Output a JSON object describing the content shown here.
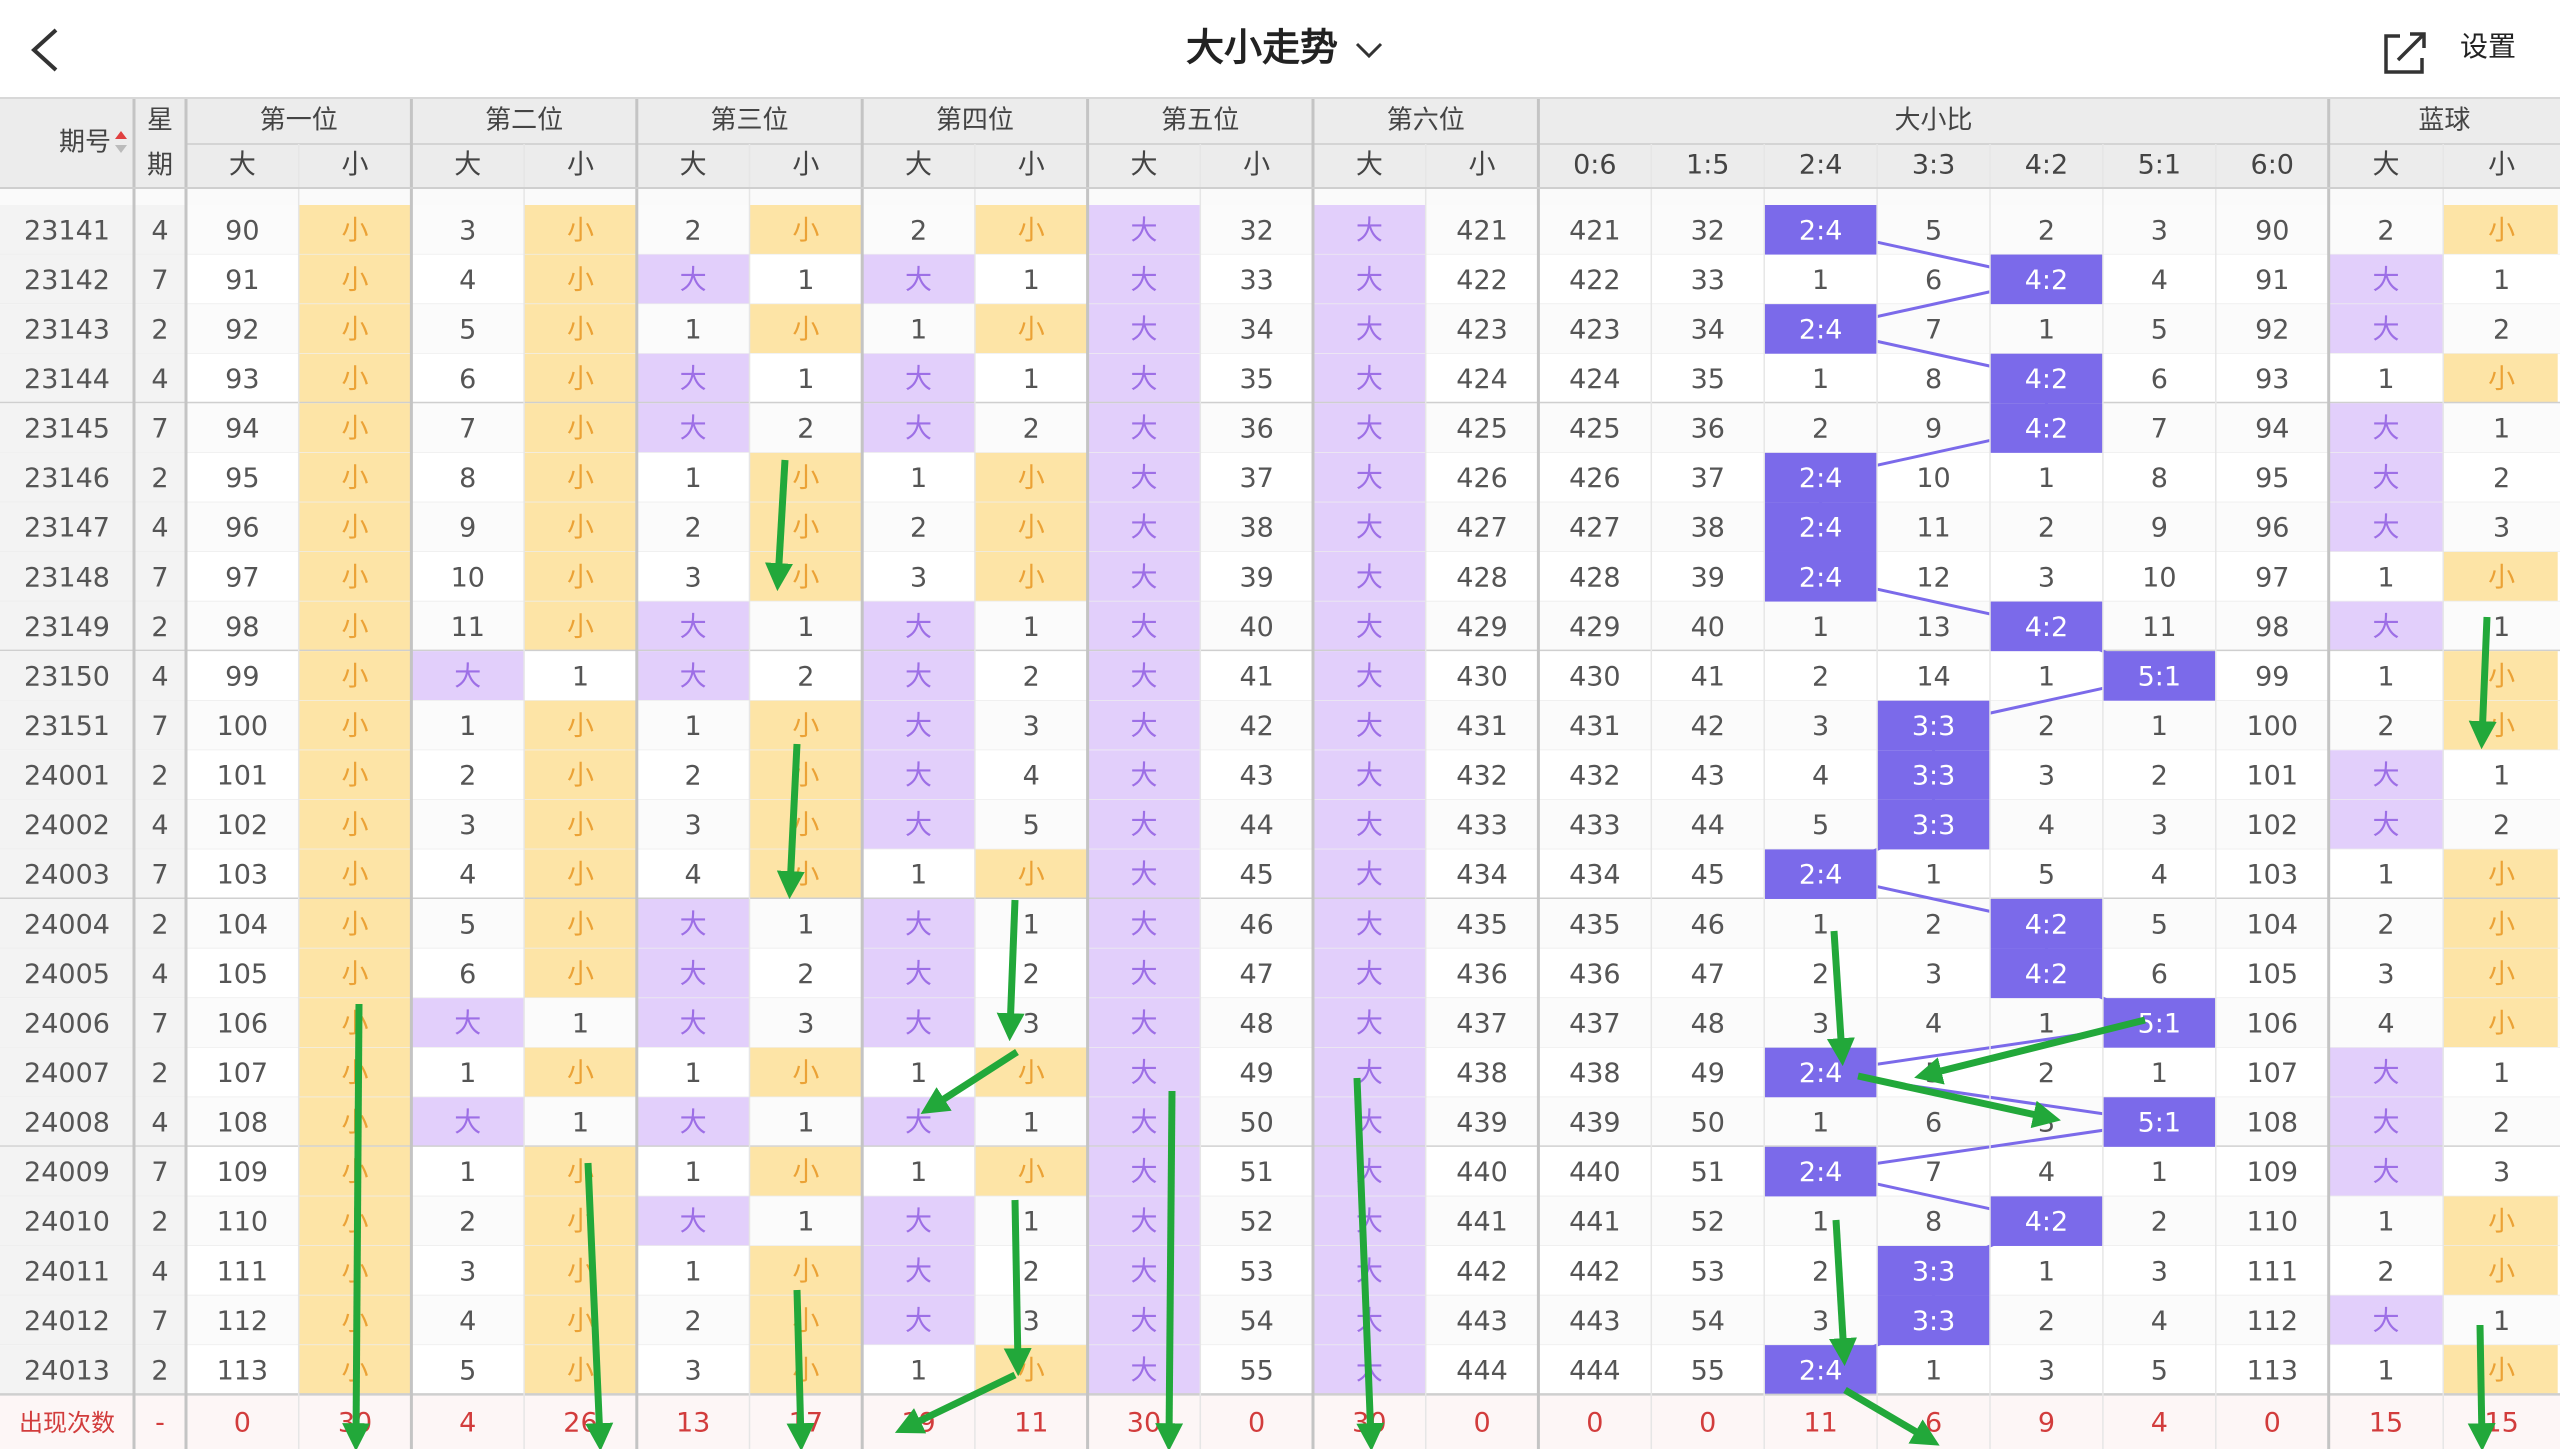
{
  "header": {
    "title": "大小走势",
    "settings": "设置"
  },
  "table": {
    "group_headers": [
      "期号",
      "第一位",
      "第二位",
      "第三位",
      "第四位",
      "第五位",
      "第六位",
      "大小比",
      "蓝球"
    ],
    "weekday_header": [
      "星",
      "期"
    ],
    "sub_headers": [
      "大",
      "小",
      "大",
      "小",
      "大",
      "小",
      "大",
      "小",
      "大",
      "小",
      "大",
      "小",
      "0:6",
      "1:5",
      "2:4",
      "3:3",
      "4:2",
      "5:1",
      "6:0",
      "大",
      "小"
    ],
    "rows": [
      [
        "23141",
        "4",
        "90",
        "小",
        "3",
        "小",
        "2",
        "小",
        "2",
        "小",
        "大",
        "32",
        "大",
        "421",
        "421",
        "32",
        "2:4",
        "5",
        "2",
        "3",
        "90",
        "2",
        "小"
      ],
      [
        "23142",
        "7",
        "91",
        "小",
        "4",
        "小",
        "大",
        "1",
        "大",
        "1",
        "大",
        "33",
        "大",
        "422",
        "422",
        "33",
        "1",
        "6",
        "4:2",
        "4",
        "91",
        "大",
        "1"
      ],
      [
        "23143",
        "2",
        "92",
        "小",
        "5",
        "小",
        "1",
        "小",
        "1",
        "小",
        "大",
        "34",
        "大",
        "423",
        "423",
        "34",
        "2:4",
        "7",
        "1",
        "5",
        "92",
        "大",
        "2"
      ],
      [
        "23144",
        "4",
        "93",
        "小",
        "6",
        "小",
        "大",
        "1",
        "大",
        "1",
        "大",
        "35",
        "大",
        "424",
        "424",
        "35",
        "1",
        "8",
        "4:2",
        "6",
        "93",
        "1",
        "小"
      ],
      [
        "23145",
        "7",
        "94",
        "小",
        "7",
        "小",
        "大",
        "2",
        "大",
        "2",
        "大",
        "36",
        "大",
        "425",
        "425",
        "36",
        "2",
        "9",
        "4:2",
        "7",
        "94",
        "大",
        "1"
      ],
      [
        "23146",
        "2",
        "95",
        "小",
        "8",
        "小",
        "1",
        "小",
        "1",
        "小",
        "大",
        "37",
        "大",
        "426",
        "426",
        "37",
        "2:4",
        "10",
        "1",
        "8",
        "95",
        "大",
        "2"
      ],
      [
        "23147",
        "4",
        "96",
        "小",
        "9",
        "小",
        "2",
        "小",
        "2",
        "小",
        "大",
        "38",
        "大",
        "427",
        "427",
        "38",
        "2:4",
        "11",
        "2",
        "9",
        "96",
        "大",
        "3"
      ],
      [
        "23148",
        "7",
        "97",
        "小",
        "10",
        "小",
        "3",
        "小",
        "3",
        "小",
        "大",
        "39",
        "大",
        "428",
        "428",
        "39",
        "2:4",
        "12",
        "3",
        "10",
        "97",
        "1",
        "小"
      ],
      [
        "23149",
        "2",
        "98",
        "小",
        "11",
        "小",
        "大",
        "1",
        "大",
        "1",
        "大",
        "40",
        "大",
        "429",
        "429",
        "40",
        "1",
        "13",
        "4:2",
        "11",
        "98",
        "大",
        "1"
      ],
      [
        "23150",
        "4",
        "99",
        "小",
        "大",
        "1",
        "大",
        "2",
        "大",
        "2",
        "大",
        "41",
        "大",
        "430",
        "430",
        "41",
        "2",
        "14",
        "1",
        "5:1",
        "99",
        "1",
        "小"
      ],
      [
        "23151",
        "7",
        "100",
        "小",
        "1",
        "小",
        "1",
        "小",
        "大",
        "3",
        "大",
        "42",
        "大",
        "431",
        "431",
        "42",
        "3",
        "3:3",
        "2",
        "1",
        "100",
        "2",
        "小"
      ],
      [
        "24001",
        "2",
        "101",
        "小",
        "2",
        "小",
        "2",
        "小",
        "大",
        "4",
        "大",
        "43",
        "大",
        "432",
        "432",
        "43",
        "4",
        "3:3",
        "3",
        "2",
        "101",
        "大",
        "1"
      ],
      [
        "24002",
        "4",
        "102",
        "小",
        "3",
        "小",
        "3",
        "小",
        "大",
        "5",
        "大",
        "44",
        "大",
        "433",
        "433",
        "44",
        "5",
        "3:3",
        "4",
        "3",
        "102",
        "大",
        "2"
      ],
      [
        "24003",
        "7",
        "103",
        "小",
        "4",
        "小",
        "4",
        "小",
        "1",
        "小",
        "大",
        "45",
        "大",
        "434",
        "434",
        "45",
        "2:4",
        "1",
        "5",
        "4",
        "103",
        "1",
        "小"
      ],
      [
        "24004",
        "2",
        "104",
        "小",
        "5",
        "小",
        "大",
        "1",
        "大",
        "1",
        "大",
        "46",
        "大",
        "435",
        "435",
        "46",
        "1",
        "2",
        "4:2",
        "5",
        "104",
        "2",
        "小"
      ],
      [
        "24005",
        "4",
        "105",
        "小",
        "6",
        "小",
        "大",
        "2",
        "大",
        "2",
        "大",
        "47",
        "大",
        "436",
        "436",
        "47",
        "2",
        "3",
        "4:2",
        "6",
        "105",
        "3",
        "小"
      ],
      [
        "24006",
        "7",
        "106",
        "小",
        "大",
        "1",
        "大",
        "3",
        "大",
        "3",
        "大",
        "48",
        "大",
        "437",
        "437",
        "48",
        "3",
        "4",
        "1",
        "5:1",
        "106",
        "4",
        "小"
      ],
      [
        "24007",
        "2",
        "107",
        "小",
        "1",
        "小",
        "1",
        "小",
        "1",
        "小",
        "大",
        "49",
        "大",
        "438",
        "438",
        "49",
        "2:4",
        "5",
        "2",
        "1",
        "107",
        "大",
        "1"
      ],
      [
        "24008",
        "4",
        "108",
        "小",
        "大",
        "1",
        "大",
        "1",
        "大",
        "1",
        "大",
        "50",
        "大",
        "439",
        "439",
        "50",
        "1",
        "6",
        "3",
        "5:1",
        "108",
        "大",
        "2"
      ],
      [
        "24009",
        "7",
        "109",
        "小",
        "1",
        "小",
        "1",
        "小",
        "1",
        "小",
        "大",
        "51",
        "大",
        "440",
        "440",
        "51",
        "2:4",
        "7",
        "4",
        "1",
        "109",
        "大",
        "3"
      ],
      [
        "24010",
        "2",
        "110",
        "小",
        "2",
        "小",
        "大",
        "1",
        "大",
        "1",
        "大",
        "52",
        "大",
        "441",
        "441",
        "52",
        "1",
        "8",
        "4:2",
        "2",
        "110",
        "1",
        "小"
      ],
      [
        "24011",
        "4",
        "111",
        "小",
        "3",
        "小",
        "1",
        "小",
        "大",
        "2",
        "大",
        "53",
        "大",
        "442",
        "442",
        "53",
        "2",
        "3:3",
        "1",
        "3",
        "111",
        "2",
        "小"
      ],
      [
        "24012",
        "7",
        "112",
        "小",
        "4",
        "小",
        "2",
        "小",
        "大",
        "3",
        "大",
        "54",
        "大",
        "443",
        "443",
        "54",
        "3",
        "3:3",
        "2",
        "4",
        "112",
        "大",
        "1"
      ],
      [
        "24013",
        "2",
        "113",
        "小",
        "5",
        "小",
        "3",
        "小",
        "1",
        "小",
        "大",
        "55",
        "大",
        "444",
        "444",
        "55",
        "2:4",
        "1",
        "3",
        "5",
        "113",
        "1",
        "小"
      ]
    ],
    "footer": [
      "出现次数",
      "-",
      "0",
      "30",
      "4",
      "26",
      "13",
      "17",
      "19",
      "11",
      "30",
      "0",
      "30",
      "0",
      "0",
      "0",
      "11",
      "6",
      "9",
      "4",
      "0",
      "15",
      "15"
    ]
  }
}
